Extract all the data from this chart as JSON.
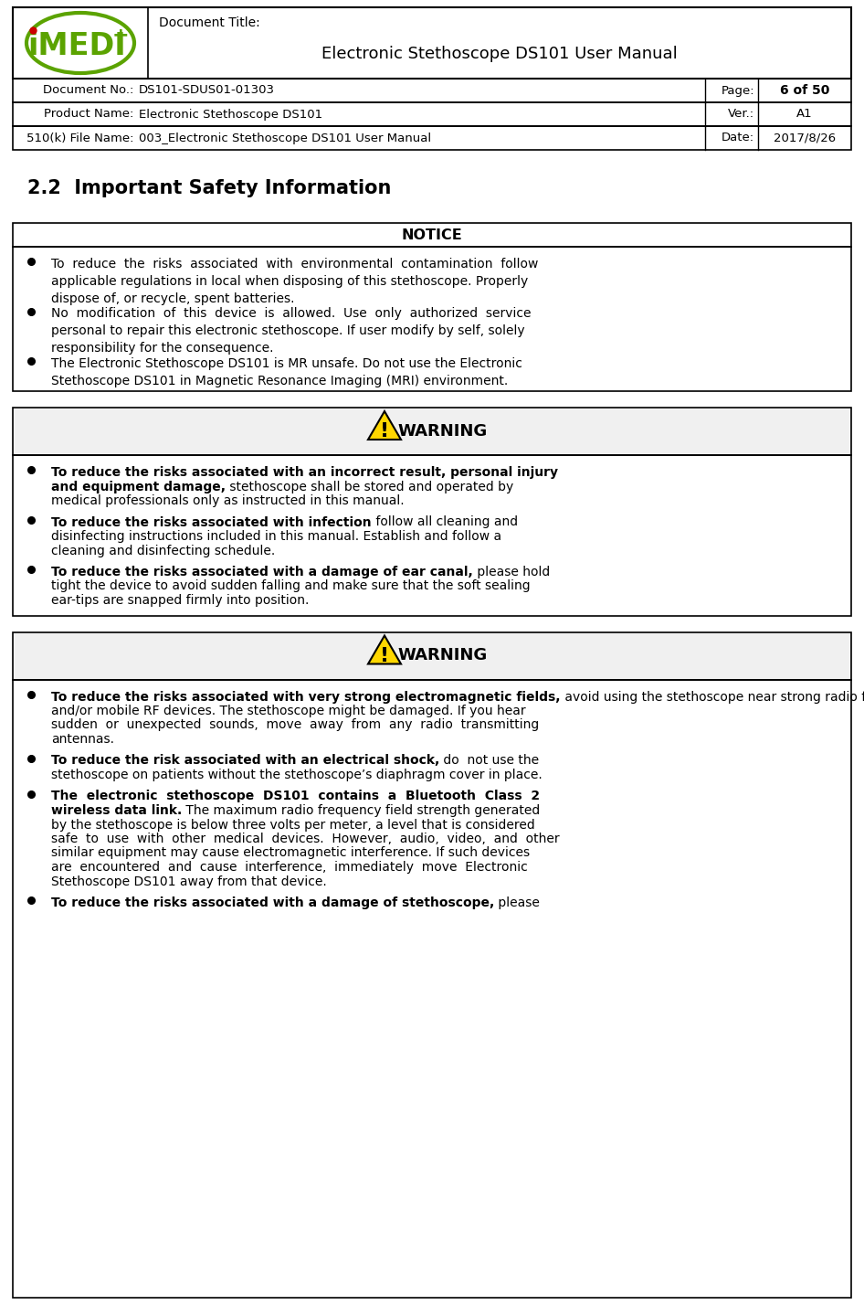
{
  "bg_color": "#ffffff",
  "header_logo_green": "#5BA300",
  "header_logo_red": "#CC0000",
  "border_color": "#000000",
  "doc_title_label": "Document Title:",
  "doc_title_value": "Electronic Stethoscope DS101 User Manual",
  "header_rows": [
    {
      "label": "Document No.:",
      "value": "DS101-SDUS01-01303",
      "right_label": "Page:",
      "right_value": "6 of 50",
      "right_bold": true
    },
    {
      "label": "Product Name:",
      "value": "Electronic Stethoscope DS101",
      "right_label": "Ver.:",
      "right_value": "A1",
      "right_bold": false
    },
    {
      "label": "510(k) File Name:",
      "value": "003_Electronic Stethoscope DS101 User Manual",
      "right_label": "Date:",
      "right_value": "2017/8/26",
      "right_bold": false
    }
  ],
  "section_title": "2.2  Important Safety Information",
  "notice_header": "NOTICE",
  "notice_items": [
    "To  reduce  the  risks  associated  with  environmental  contamination  follow\napplicable regulations in local when disposing of this stethoscope. Properly\ndispose of, or recycle, spent batteries.",
    "No  modification  of  this  device  is  allowed.  Use  only  authorized  service\npersonal to repair this electronic stethoscope. If user modify by self, solely\nresponsibility for the consequence.",
    "The Electronic Stethoscope DS101 is MR unsafe. Do not use the Electronic\nStethoscope DS101 in Magnetic Resonance Imaging (MRI) environment."
  ],
  "warning1_header": "WARNING",
  "warning1_items": [
    [
      {
        "text": "To reduce the risks associated with an incorrect result, personal injury\nand equipment damage,",
        "bold": true
      },
      {
        "text": " stethoscope shall be stored and operated by\nmedical professionals only as instructed in this manual.",
        "bold": false
      }
    ],
    [
      {
        "text": "To reduce the risks associated with infection",
        "bold": true
      },
      {
        "text": " follow all cleaning and\ndisinfecting instructions included in this manual. Establish and follow a\ncleaning and disinfecting schedule.",
        "bold": false
      }
    ],
    [
      {
        "text": "To reduce the risks associated with a damage of ear canal,",
        "bold": true
      },
      {
        "text": " please hold\ntight the device to avoid sudden falling and make sure that the soft sealing\near-tips are snapped firmly into position.",
        "bold": false
      }
    ]
  ],
  "warning2_header": "WARNING",
  "warning2_items": [
    [
      {
        "text": "To reduce the risks associated with very strong electromagnetic fields,",
        "bold": true
      },
      {
        "text": " avoid using the stethoscope near strong radio frequency signals or portable\nand/or mobile RF devices. The stethoscope might be damaged. If you hear\nsudden  or  unexpected  sounds,  move  away  from  any  radio  transmitting\nantennas.",
        "bold": false
      }
    ],
    [
      {
        "text": "To reduce the risk associated with an electrical shock,",
        "bold": true
      },
      {
        "text": " do  not use the\nstethoscope on patients without the stethoscope’s diaphragm cover in place.",
        "bold": false
      }
    ],
    [
      {
        "text": "The  electronic  stethoscope  DS101  contains  a  Bluetooth  Class  2\nwireless data link.",
        "bold": true
      },
      {
        "text": " The maximum radio frequency field strength generated\nby the stethoscope is below three volts per meter, a level that is considered\nsafe  to  use  with  other  medical  devices.  However,  audio,  video,  and  other\nsimilar equipment may cause electromagnetic interference. If such devices\nare  encountered  and  cause  interference,  immediately  move  Electronic\nStethoscope DS101 away from that device.",
        "bold": false
      }
    ],
    [
      {
        "text": "To reduce the risks associated with a damage of stethoscope,",
        "bold": true
      },
      {
        "text": " please",
        "bold": false
      }
    ]
  ],
  "warn_triangle_color": "#FFD700",
  "warn_triangle_border": "#000000",
  "warn_bg": "#f0f0f0"
}
